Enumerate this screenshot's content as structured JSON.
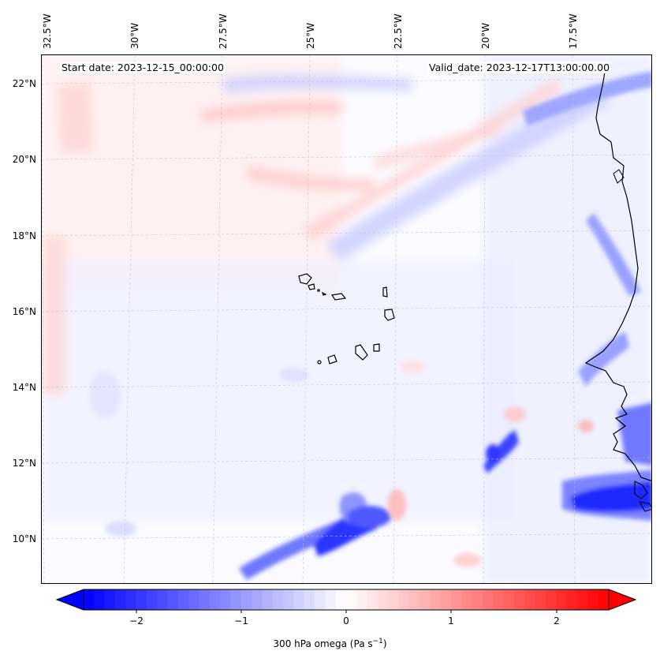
{
  "map": {
    "header": {
      "start_date": "Start date: 2023-12-15_00:00:00",
      "valid_date": "Valid_date: 2023-12-17T13:00:00.00"
    },
    "lon_labels": [
      "32.5°W",
      "30°W",
      "27.5°W",
      "25°W",
      "22.5°W",
      "20°W",
      "17.5°W"
    ],
    "lat_labels": [
      "22°N",
      "20°N",
      "18°N",
      "16°N",
      "14°N",
      "12°N",
      "10°N"
    ],
    "variable": "300 hPa omega",
    "colorbar": {
      "ticks": [
        "−2",
        "−1",
        "0",
        "1",
        "2"
      ],
      "label_text": "300 hPa omega (Pa s",
      "label_sup": "−1",
      "label_close": ")",
      "range": [
        -2.6,
        2.6
      ],
      "colors": {
        "negative": "#0000ff",
        "zero": "#ffffff",
        "positive": "#ff0000"
      }
    }
  }
}
